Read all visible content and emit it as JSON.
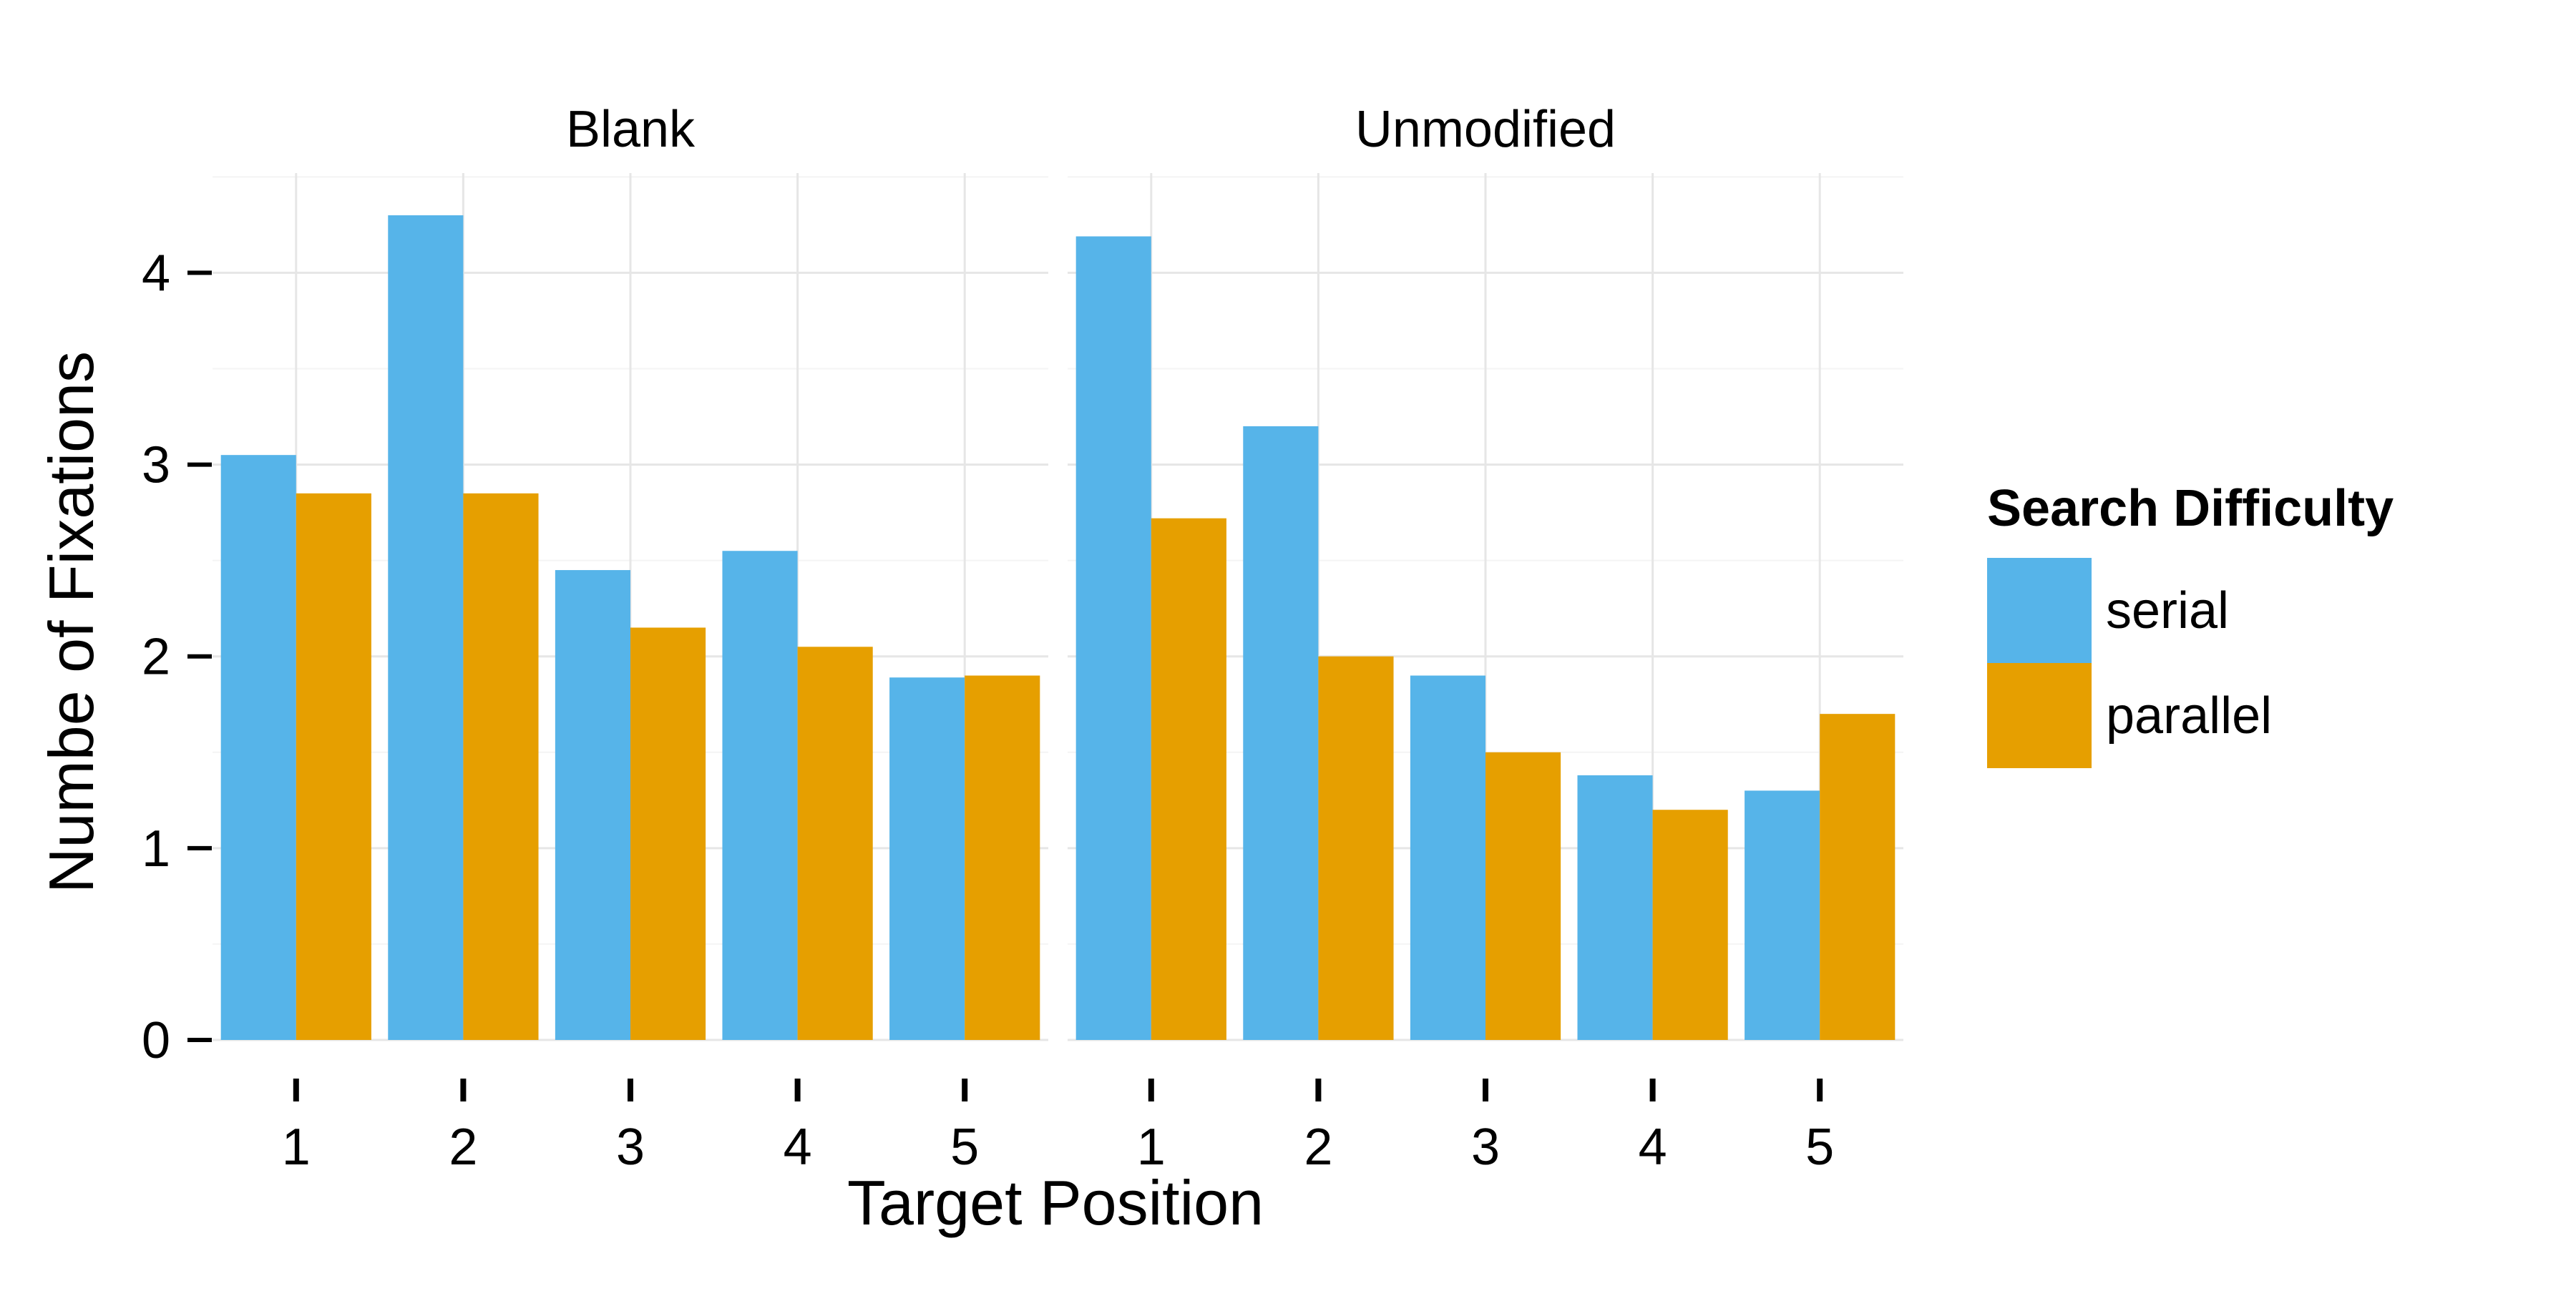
{
  "chart_data": {
    "type": "bar",
    "facets": [
      {
        "title": "Blank",
        "categories": [
          "1",
          "2",
          "3",
          "4",
          "5"
        ],
        "series": [
          {
            "name": "serial",
            "values": [
              3.05,
              4.3,
              2.45,
              2.55,
              1.89
            ]
          },
          {
            "name": "parallel",
            "values": [
              2.85,
              2.85,
              2.15,
              2.05,
              1.9
            ]
          }
        ]
      },
      {
        "title": "Unmodified",
        "categories": [
          "1",
          "2",
          "3",
          "4",
          "5"
        ],
        "series": [
          {
            "name": "serial",
            "values": [
              4.19,
              3.2,
              1.9,
              1.38,
              1.3
            ]
          },
          {
            "name": "parallel",
            "values": [
              2.72,
              2.0,
              1.5,
              1.2,
              1.7
            ]
          }
        ]
      }
    ],
    "xlabel": "Target Position",
    "ylabel": "Numbe of Fixations",
    "ylim": [
      0,
      4.52
    ],
    "yticks": [
      0,
      1,
      2,
      3,
      4
    ],
    "grid": true,
    "legend": {
      "title": "Search Difficulty",
      "position": "right",
      "entries": [
        "serial",
        "parallel"
      ]
    },
    "colors": {
      "serial": "#56B4E9",
      "parallel": "#E69F00"
    }
  }
}
